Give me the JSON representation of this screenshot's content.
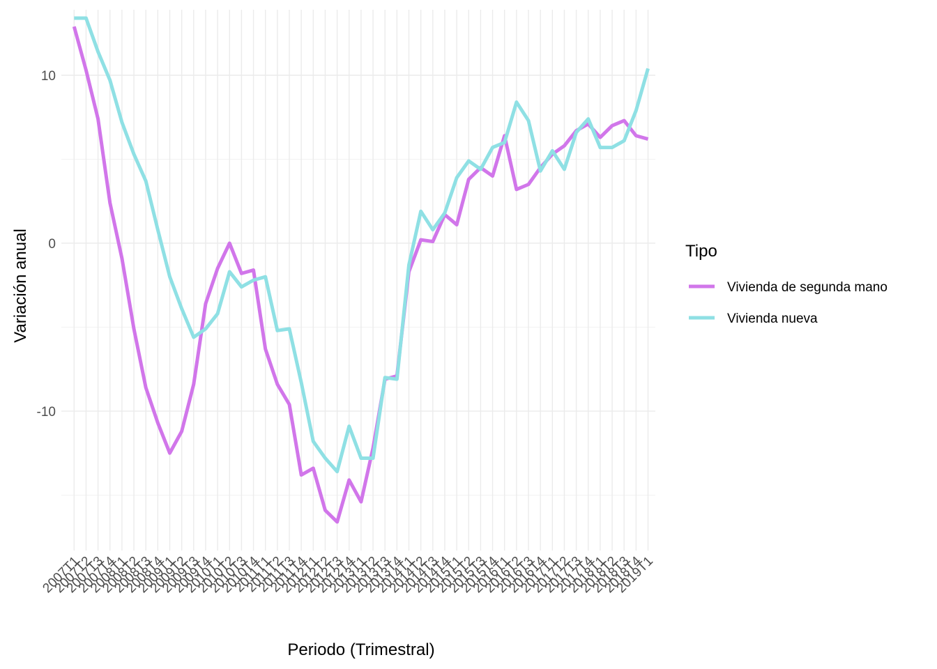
{
  "chart_data": {
    "type": "line",
    "xlabel": "Periodo (Trimestral)",
    "ylabel": "Variación anual",
    "ylim": [
      -18.3,
      13.9
    ],
    "y_ticks": [
      -10,
      0,
      10
    ],
    "y_tick_labels": [
      "-10",
      "0",
      "10"
    ],
    "grid": true,
    "legend": {
      "title": "Tipo",
      "placement": "right"
    },
    "categories": [
      "2007T1",
      "2007T2",
      "2007T3",
      "2007T4",
      "2008T1",
      "2008T2",
      "2008T3",
      "2008T4",
      "2009T1",
      "2009T2",
      "2009T3",
      "2009T4",
      "2010T1",
      "2010T2",
      "2010T3",
      "2010T4",
      "2011T1",
      "2011T2",
      "2011T3",
      "2011T4",
      "2012T1",
      "2012T2",
      "2012T3",
      "2012T4",
      "2013T1",
      "2013T2",
      "2013T3",
      "2013T4",
      "2014T1",
      "2014T2",
      "2014T3",
      "2014T4",
      "2015T1",
      "2015T2",
      "2015T3",
      "2015T4",
      "2016T1",
      "2016T2",
      "2016T3",
      "2016T4",
      "2017T1",
      "2017T2",
      "2017T3",
      "2017T4",
      "2018T1",
      "2018T2",
      "2018T3",
      "2018T4",
      "2019T1"
    ],
    "series": [
      {
        "name": "Vivienda de segunda mano",
        "color": "#d176ea",
        "values": [
          12.9,
          10.3,
          7.4,
          2.4,
          -0.9,
          -5.1,
          -8.6,
          -10.7,
          -12.5,
          -11.2,
          -8.4,
          -3.6,
          -1.5,
          0.0,
          -1.8,
          -1.6,
          -6.3,
          -8.4,
          -9.6,
          -13.8,
          -13.4,
          -15.9,
          -16.6,
          -14.1,
          -15.4,
          -12.2,
          -8.1,
          -7.9,
          -1.7,
          0.2,
          0.1,
          1.7,
          1.1,
          3.8,
          4.5,
          4.0,
          6.4,
          3.2,
          3.5,
          4.5,
          5.3,
          5.8,
          6.7,
          7.1,
          6.3,
          7.0,
          7.3,
          6.4,
          6.2
        ]
      },
      {
        "name": "Vivienda nueva",
        "color": "#8fe0e4",
        "values": [
          13.4,
          13.4,
          11.4,
          9.7,
          7.2,
          5.3,
          3.7,
          0.8,
          -2.0,
          -3.9,
          -5.6,
          -5.1,
          -4.2,
          -1.7,
          -2.6,
          -2.2,
          -2.0,
          -5.2,
          -5.1,
          -8.3,
          -11.8,
          -12.8,
          -13.6,
          -10.9,
          -12.8,
          -12.8,
          -8.0,
          -8.1,
          -1.3,
          1.9,
          0.8,
          1.8,
          3.9,
          4.9,
          4.4,
          5.7,
          6.0,
          8.4,
          7.3,
          4.3,
          5.5,
          4.4,
          6.6,
          7.4,
          5.7,
          5.7,
          6.1,
          7.9,
          10.4
        ]
      }
    ]
  }
}
